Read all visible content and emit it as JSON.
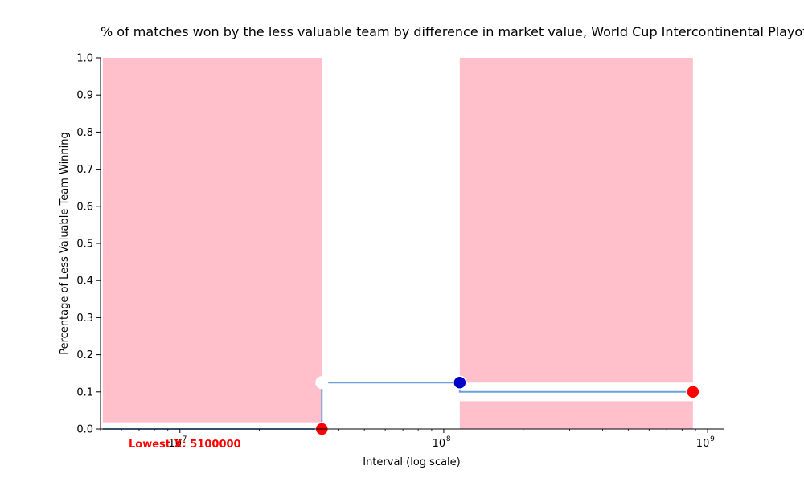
{
  "chart_data": {
    "type": "line",
    "title": "% of matches won by the less valuable team by difference in market value, World Cup Intercontinental Playoffs",
    "xlabel": "Interval (log scale)",
    "ylabel": "Percentage of Less Valuable Team Winning",
    "x_scale": "log",
    "xlim": [
      5000000,
      1150000000
    ],
    "ylim": [
      0,
      1
    ],
    "y_ticks": [
      "0.0",
      "0.1",
      "0.2",
      "0.3",
      "0.4",
      "0.5",
      "0.6",
      "0.7",
      "0.8",
      "0.9",
      "1.0"
    ],
    "x_ticks": [
      {
        "value": 10000000,
        "base": "10",
        "exp": "7"
      },
      {
        "value": 100000000,
        "base": "10",
        "exp": "8"
      },
      {
        "value": 1000000000,
        "base": "10",
        "exp": "9"
      }
    ],
    "line": {
      "color": "#6a9fd8",
      "x": [
        5100000,
        34500000,
        34500000,
        115000000,
        115000000,
        880000000
      ],
      "y": [
        0.0,
        0.0,
        0.125,
        0.125,
        0.1,
        0.1
      ]
    },
    "points": [
      {
        "x": 34500000,
        "y": 0.0,
        "color": "#ff0000"
      },
      {
        "x": 115000000,
        "y": 0.125,
        "color": "#0000cc"
      },
      {
        "x": 880000000,
        "y": 0.1,
        "color": "#ff0000"
      }
    ],
    "white_points": [
      {
        "x": 34500000,
        "y": 0.125
      }
    ],
    "shaded_regions": [
      {
        "x0": 5100000,
        "x1": 34500000,
        "color": "#ffc0cb"
      },
      {
        "x0": 115000000,
        "x1": 880000000,
        "color": "#ffc0cb"
      }
    ],
    "lowest_x_label": "Lowest X: 5100000"
  }
}
